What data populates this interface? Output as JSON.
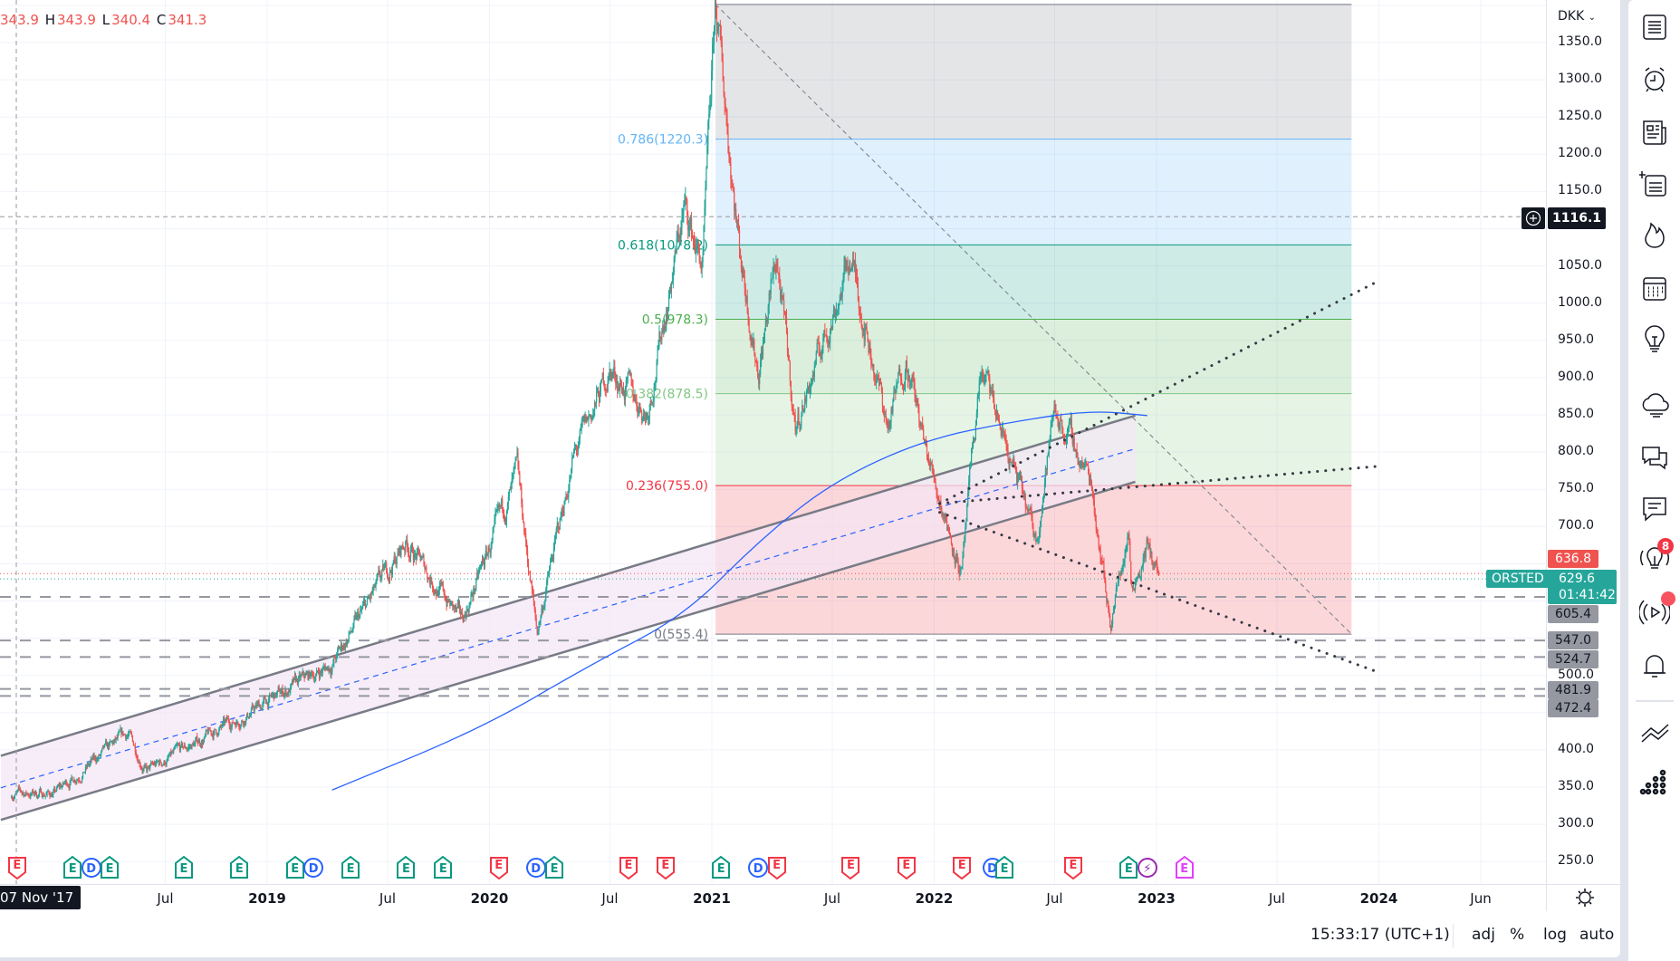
{
  "legend": {
    "o": "343.9",
    "h_label": "H",
    "h": "343.9",
    "l_label": "L",
    "l": "340.4",
    "c_label": "C",
    "c": "341.3"
  },
  "currency": "DKK",
  "crosshair": {
    "price": "1116.1",
    "date": "07 Nov '17"
  },
  "price_labels": {
    "high_label": {
      "value": "636.8",
      "color": "#ef5350"
    },
    "levels": [
      "605.4",
      "547.0",
      "524.7",
      "481.9",
      "472.4"
    ]
  },
  "last_price": {
    "symbol": "ORSTED",
    "price": "629.6",
    "countdown": "01:41:42",
    "color": "#26a69a"
  },
  "bottom_bar": {
    "time": "15:33:17 (UTC+1)",
    "adj": "adj",
    "percent": "%",
    "log": "log",
    "auto": "auto"
  },
  "toolbar": [
    {
      "icon": "watchlist-icon"
    },
    {
      "icon": "alert-clock-icon"
    },
    {
      "icon": "news-icon"
    },
    {
      "icon": "add-list-icon"
    },
    {
      "icon": "hotlist-fire-icon"
    },
    {
      "icon": "calendar-icon"
    },
    {
      "icon": "lightbulb-icon"
    },
    {
      "icon": "chat-cloud-icon"
    },
    {
      "icon": "chats-icon"
    },
    {
      "icon": "comment-icon"
    },
    {
      "icon": "ideas-stream-icon",
      "badge": "8"
    },
    {
      "icon": "streams-icon",
      "dot": true
    },
    {
      "icon": "notifications-bell-icon"
    },
    {
      "icon": "trend-chart-icon"
    },
    {
      "icon": "dots-grid-icon"
    }
  ],
  "chart_data": {
    "type": "candlestick",
    "symbol": "ORSTED",
    "currency": "DKK",
    "scale": "linear",
    "ylim": [
      230,
      1410
    ],
    "y_ticks": [
      "1350.0",
      "1300.0",
      "1250.0",
      "1200.0",
      "1150.0",
      "1050.0",
      "1000.0",
      "950.0",
      "900.0",
      "850.0",
      "800.0",
      "750.0",
      "700.0",
      "500.0",
      "400.0",
      "350.0",
      "300.0",
      "250.0"
    ],
    "x_ticks": [
      {
        "label": "Jul",
        "date": "2018-07",
        "year": false
      },
      {
        "label": "2019",
        "date": "2019-01-01",
        "year": true
      },
      {
        "label": "Jul",
        "date": "2019-07",
        "year": false
      },
      {
        "label": "2020",
        "date": "2020-01-01",
        "year": true
      },
      {
        "label": "Jul",
        "date": "2020-07",
        "year": false
      },
      {
        "label": "2021",
        "date": "2021-01-01",
        "year": true
      },
      {
        "label": "Jul",
        "date": "2021-07",
        "year": false
      },
      {
        "label": "2022",
        "date": "2022-01-01",
        "year": true
      },
      {
        "label": "Jul",
        "date": "2022-07",
        "year": false
      },
      {
        "label": "2023",
        "date": "2023-01-01",
        "year": true
      },
      {
        "label": "Jul",
        "date": "2023-07",
        "year": false
      },
      {
        "label": "2024",
        "date": "2024-01-01",
        "year": true
      },
      {
        "label": "Jun",
        "date": "2024-06",
        "year": false
      }
    ],
    "price_path": [
      [
        "2017-11-07",
        341
      ],
      [
        "2018-01",
        342
      ],
      [
        "2018-05",
        421
      ],
      [
        "2018-06",
        371
      ],
      [
        "2018-12",
        457
      ],
      [
        "2019-04",
        515
      ],
      [
        "2019-08",
        680
      ],
      [
        "2019-11",
        572
      ],
      [
        "2020-02",
        767
      ],
      [
        "2020-03-18",
        558
      ],
      [
        "2020-05",
        788
      ],
      [
        "2020-07",
        911
      ],
      [
        "2020-09",
        853
      ],
      [
        "2020-11",
        1127
      ],
      [
        "2020-12",
        1048
      ],
      [
        "2021-01-07",
        1396
      ],
      [
        "2021-02",
        1076
      ],
      [
        "2021-03",
        911
      ],
      [
        "2021-04",
        1062
      ],
      [
        "2021-05",
        832
      ],
      [
        "2021-08",
        1062
      ],
      [
        "2021-10",
        832
      ],
      [
        "2021-11",
        932
      ],
      [
        "2021-12",
        803
      ],
      [
        "2022-01",
        724
      ],
      [
        "2022-02",
        637
      ],
      [
        "2022-03",
        911
      ],
      [
        "2022-04",
        839
      ],
      [
        "2022-06",
        680
      ],
      [
        "2022-07",
        860
      ],
      [
        "2022-09",
        760
      ],
      [
        "2022-10",
        572
      ],
      [
        "2022-11",
        695
      ],
      [
        "2022-11-20",
        623
      ],
      [
        "2022-12",
        673
      ],
      [
        "2023-01-06",
        630
      ]
    ],
    "colors": {
      "up": "#26a69a",
      "down": "#ef5350"
    },
    "moving_average": {
      "color": "#2962ff",
      "points": [
        [
          "2019-04",
          346
        ],
        [
          "2019-12",
          428
        ],
        [
          "2020-06",
          515
        ],
        [
          "2020-11",
          580
        ],
        [
          "2021-03",
          680
        ],
        [
          "2021-07",
          760
        ],
        [
          "2021-12",
          817
        ],
        [
          "2022-05",
          842
        ],
        [
          "2022-09",
          856
        ],
        [
          "2022-12",
          849
        ]
      ]
    },
    "fib_retracement": {
      "start": "2021-01-07",
      "end": "2023-11-17",
      "levels": [
        {
          "ratio": 1,
          "price": 1401.3,
          "label": "",
          "color": "#787b86"
        },
        {
          "ratio": 0.786,
          "price": 1220.3,
          "label": "0.786(1220.3)",
          "color": "#64b5f6"
        },
        {
          "ratio": 0.618,
          "price": 1078.2,
          "label": "0.618(1078.2)",
          "color": "#089981"
        },
        {
          "ratio": 0.5,
          "price": 978.3,
          "label": "0.5(978.3)",
          "color": "#4caf50"
        },
        {
          "ratio": 0.382,
          "price": 878.5,
          "label": "0.382(878.5)",
          "color": "#81c784"
        },
        {
          "ratio": 0.236,
          "price": 755.0,
          "label": "0.236(755.0)",
          "color": "#f23645"
        },
        {
          "ratio": 0,
          "price": 555.4,
          "label": "0(555.4)",
          "color": "#787b86"
        }
      ]
    },
    "trend_line": {
      "from": [
        "2021-01-07",
        1401.3
      ],
      "to": [
        "2023-11-17",
        555.4
      ],
      "color": "#787b86"
    },
    "parallel_channel": {
      "upper": [
        [
          "2017-10-20",
          392
        ],
        [
          "2022-11-27",
          849
        ]
      ],
      "lower": [
        [
          "2017-10-20",
          306
        ],
        [
          "2022-11-27",
          760
        ]
      ],
      "color": "#787b86",
      "fill": "#f3e5f5"
    },
    "dotted_lines": [
      {
        "from": [
          "2022-01-10",
          731
        ],
        "to": [
          "2024-01-01",
          1030
        ]
      },
      {
        "from": [
          "2022-01-10",
          731
        ],
        "to": [
          "2024-01-01",
          781
        ]
      },
      {
        "from": [
          "2022-01-10",
          719
        ],
        "to": [
          "2024-01-01",
          504
        ]
      }
    ],
    "horizontal_levels": [
      605.4,
      547.0,
      524.7,
      481.9,
      472.4
    ],
    "high_line": 636.8,
    "last_price": 629.6,
    "crosshair_price": 1116.1,
    "events": [
      {
        "type": "E",
        "date": "2017-11",
        "color": "#f23645"
      },
      {
        "type": "E",
        "date": "2018-02",
        "color": "#089981"
      },
      {
        "type": "D",
        "date": "2018-03",
        "color": "#2962ff"
      },
      {
        "type": "E",
        "date": "2018-04",
        "color": "#089981"
      },
      {
        "type": "E",
        "date": "2018-08",
        "color": "#089981"
      },
      {
        "type": "E",
        "date": "2018-11",
        "color": "#089981"
      },
      {
        "type": "E",
        "date": "2019-02",
        "color": "#089981"
      },
      {
        "type": "D",
        "date": "2019-03",
        "color": "#2962ff"
      },
      {
        "type": "E",
        "date": "2019-05",
        "color": "#089981"
      },
      {
        "type": "E",
        "date": "2019-08",
        "color": "#089981"
      },
      {
        "type": "E",
        "date": "2019-10",
        "color": "#089981"
      },
      {
        "type": "E",
        "date": "2020-01",
        "color": "#f23645"
      },
      {
        "type": "D",
        "date": "2020-03",
        "color": "#2962ff"
      },
      {
        "type": "E",
        "date": "2020-04",
        "color": "#089981"
      },
      {
        "type": "E",
        "date": "2020-08",
        "color": "#f23645"
      },
      {
        "type": "E",
        "date": "2020-10",
        "color": "#f23645"
      },
      {
        "type": "E",
        "date": "2021-01",
        "color": "#089981"
      },
      {
        "type": "D",
        "date": "2021-03",
        "color": "#2962ff"
      },
      {
        "type": "E",
        "date": "2021-04",
        "color": "#f23645"
      },
      {
        "type": "E",
        "date": "2021-08",
        "color": "#f23645"
      },
      {
        "type": "E",
        "date": "2021-11",
        "color": "#f23645"
      },
      {
        "type": "E",
        "date": "2022-02",
        "color": "#f23645"
      },
      {
        "type": "D",
        "date": "2022-04-05",
        "color": "#2962ff"
      },
      {
        "type": "E",
        "date": "2022-04-25",
        "color": "#089981"
      },
      {
        "type": "E",
        "date": "2022-08",
        "color": "#f23645"
      },
      {
        "type": "E",
        "date": "2022-11",
        "color": "#089981"
      },
      {
        "type": "⚡",
        "date": "2022-12",
        "color": "#9c27b0"
      },
      {
        "type": "E",
        "date": "2023-02",
        "color": "#e040fb"
      }
    ]
  }
}
